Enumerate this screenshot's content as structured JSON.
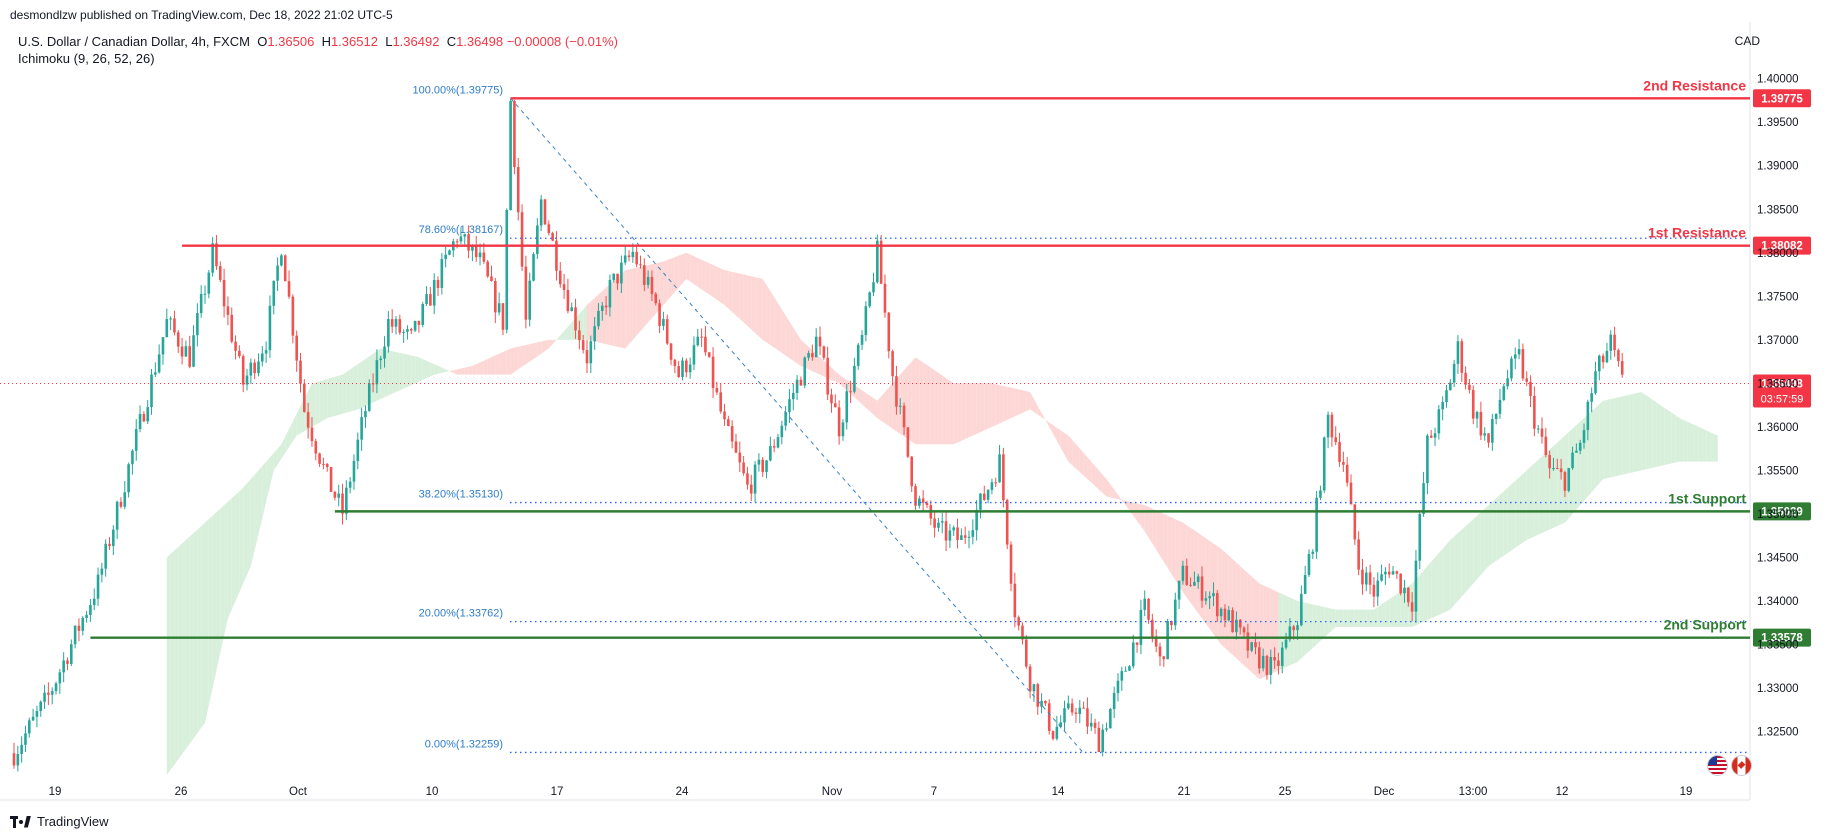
{
  "publisher_line": "desmondlzw published on TradingView.com, Dec 18, 2022 21:02 UTC-5",
  "header": {
    "symbol": "U.S. Dollar / Canadian Dollar, 4h, FXCM",
    "o_label": "O",
    "o_value": "1.36506",
    "h_label": "H",
    "h_value": "1.36512",
    "l_label": "L",
    "l_value": "1.36492",
    "c_label": "C",
    "c_value": "1.36498",
    "change": "−0.00008 (−0.01%)",
    "indicator": "Ichimoku (9, 26, 52, 26)",
    "currency": "CAD"
  },
  "footer": {
    "brand": "TradingView"
  },
  "price_tag": {
    "price": "1.36498",
    "countdown": "03:57:59"
  },
  "colors": {
    "up": "#26a69a",
    "down": "#ef5350",
    "resistance": "#f23645",
    "support": "#2e7d32",
    "fib": "#2962ff",
    "fib_text": "#2f7dc9",
    "cloud_bull": "#d8f0db",
    "cloud_bear": "#fcd7d5"
  },
  "chart_data": {
    "type": "candlestick",
    "symbol": "USDCAD",
    "timeframe": "4h",
    "ylim": [
      1.32,
      1.401
    ],
    "y_ticks": [
      "1.40000",
      "1.39500",
      "1.39000",
      "1.38500",
      "1.38000",
      "1.37500",
      "1.37000",
      "1.36500",
      "1.36000",
      "1.35500",
      "1.35000",
      "1.34500",
      "1.34000",
      "1.33500",
      "1.33000",
      "1.32500"
    ],
    "x_ticks": [
      "19",
      "26",
      "Oct",
      "10",
      "17",
      "24",
      "Nov",
      "7",
      "14",
      "21",
      "25",
      "Dec",
      "13:00",
      "12",
      "19"
    ],
    "price_path": [
      [
        0,
        1.3225
      ],
      [
        9,
        1.329
      ],
      [
        16,
        1.336
      ],
      [
        22,
        1.342
      ],
      [
        28,
        1.352
      ],
      [
        34,
        1.362
      ],
      [
        40,
        1.372
      ],
      [
        46,
        1.368
      ],
      [
        52,
        1.38
      ],
      [
        60,
        1.365
      ],
      [
        66,
        1.37
      ],
      [
        70,
        1.381
      ],
      [
        76,
        1.362
      ],
      [
        82,
        1.354
      ],
      [
        86,
        1.3502
      ],
      [
        92,
        1.362
      ],
      [
        98,
        1.372
      ],
      [
        104,
        1.37
      ],
      [
        110,
        1.376
      ],
      [
        116,
        1.382
      ],
      [
        122,
        1.379
      ],
      [
        128,
        1.372
      ],
      [
        130,
        1.3975
      ],
      [
        134,
        1.372
      ],
      [
        138,
        1.386
      ],
      [
        144,
        1.376
      ],
      [
        150,
        1.368
      ],
      [
        156,
        1.376
      ],
      [
        162,
        1.38
      ],
      [
        168,
        1.374
      ],
      [
        174,
        1.366
      ],
      [
        180,
        1.37
      ],
      [
        186,
        1.36
      ],
      [
        192,
        1.353
      ],
      [
        198,
        1.357
      ],
      [
        204,
        1.364
      ],
      [
        210,
        1.37
      ],
      [
        216,
        1.36
      ],
      [
        222,
        1.37
      ],
      [
        226,
        1.38
      ],
      [
        230,
        1.366
      ],
      [
        236,
        1.352
      ],
      [
        242,
        1.348
      ],
      [
        248,
        1.347
      ],
      [
        254,
        1.352
      ],
      [
        258,
        1.356
      ],
      [
        262,
        1.339
      ],
      [
        266,
        1.331
      ],
      [
        272,
        1.325
      ],
      [
        278,
        1.328
      ],
      [
        284,
        1.324
      ],
      [
        290,
        1.331
      ],
      [
        296,
        1.339
      ],
      [
        300,
        1.333
      ],
      [
        306,
        1.343
      ],
      [
        312,
        1.341
      ],
      [
        318,
        1.338
      ],
      [
        324,
        1.334
      ],
      [
        330,
        1.332
      ],
      [
        336,
        1.338
      ],
      [
        340,
        1.347
      ],
      [
        344,
        1.361
      ],
      [
        348,
        1.356
      ],
      [
        352,
        1.344
      ],
      [
        356,
        1.341
      ],
      [
        360,
        1.344
      ],
      [
        366,
        1.34
      ],
      [
        370,
        1.358
      ],
      [
        374,
        1.362
      ],
      [
        378,
        1.369
      ],
      [
        382,
        1.362
      ],
      [
        386,
        1.358
      ],
      [
        390,
        1.365
      ],
      [
        394,
        1.368
      ],
      [
        398,
        1.361
      ],
      [
        402,
        1.355
      ],
      [
        406,
        1.354
      ],
      [
        410,
        1.358
      ],
      [
        414,
        1.366
      ],
      [
        418,
        1.3695
      ],
      [
        421,
        1.365
      ]
    ],
    "ichimoku_cloud_top": [
      [
        40,
        1.345
      ],
      [
        60,
        1.353
      ],
      [
        70,
        1.358
      ],
      [
        78,
        1.365
      ],
      [
        86,
        1.366
      ],
      [
        96,
        1.369
      ],
      [
        106,
        1.368
      ],
      [
        116,
        1.366
      ],
      [
        122,
        1.366
      ],
      [
        130,
        1.366
      ],
      [
        140,
        1.369
      ],
      [
        150,
        1.374
      ],
      [
        160,
        1.378
      ],
      [
        170,
        1.379
      ],
      [
        176,
        1.38
      ],
      [
        186,
        1.378
      ],
      [
        196,
        1.377
      ],
      [
        206,
        1.37
      ],
      [
        216,
        1.366
      ],
      [
        226,
        1.363
      ],
      [
        236,
        1.368
      ],
      [
        246,
        1.365
      ],
      [
        256,
        1.365
      ],
      [
        266,
        1.364
      ],
      [
        276,
        1.356
      ],
      [
        286,
        1.352
      ],
      [
        296,
        1.351
      ],
      [
        306,
        1.349
      ],
      [
        316,
        1.346
      ],
      [
        326,
        1.342
      ],
      [
        336,
        1.34
      ],
      [
        346,
        1.339
      ],
      [
        356,
        1.339
      ],
      [
        366,
        1.342
      ],
      [
        376,
        1.347
      ],
      [
        386,
        1.351
      ],
      [
        396,
        1.355
      ],
      [
        406,
        1.359
      ],
      [
        416,
        1.363
      ],
      [
        426,
        1.364
      ],
      [
        436,
        1.361
      ],
      [
        446,
        1.359
      ]
    ],
    "ichimoku_cloud_bottom": [
      [
        40,
        1.32
      ],
      [
        50,
        1.326
      ],
      [
        56,
        1.338
      ],
      [
        62,
        1.344
      ],
      [
        68,
        1.355
      ],
      [
        74,
        1.359
      ],
      [
        82,
        1.361
      ],
      [
        90,
        1.362
      ],
      [
        100,
        1.364
      ],
      [
        110,
        1.366
      ],
      [
        120,
        1.367
      ],
      [
        130,
        1.369
      ],
      [
        140,
        1.37
      ],
      [
        150,
        1.37
      ],
      [
        160,
        1.369
      ],
      [
        170,
        1.374
      ],
      [
        176,
        1.377
      ],
      [
        186,
        1.374
      ],
      [
        196,
        1.37
      ],
      [
        206,
        1.367
      ],
      [
        216,
        1.365
      ],
      [
        226,
        1.361
      ],
      [
        236,
        1.358
      ],
      [
        246,
        1.358
      ],
      [
        256,
        1.36
      ],
      [
        266,
        1.362
      ],
      [
        276,
        1.359
      ],
      [
        286,
        1.354
      ],
      [
        296,
        1.348
      ],
      [
        306,
        1.341
      ],
      [
        316,
        1.335
      ],
      [
        326,
        1.331
      ],
      [
        336,
        1.333
      ],
      [
        346,
        1.337
      ],
      [
        356,
        1.337
      ],
      [
        366,
        1.337
      ],
      [
        376,
        1.339
      ],
      [
        386,
        1.344
      ],
      [
        396,
        1.347
      ],
      [
        406,
        1.349
      ],
      [
        416,
        1.354
      ],
      [
        426,
        1.355
      ],
      [
        436,
        1.356
      ],
      [
        446,
        1.356
      ]
    ],
    "levels": [
      {
        "name": "2nd Resistance",
        "price": 1.39775,
        "price_label": "1.39775",
        "type": "resistance",
        "x_start": 130
      },
      {
        "name": "1st Resistance",
        "price": 1.38082,
        "price_label": "1.38082",
        "type": "resistance",
        "x_start": 44
      },
      {
        "name": "1st Support",
        "price": 1.35029,
        "price_label": "1.35029",
        "type": "support",
        "x_start": 84
      },
      {
        "name": "2nd Support",
        "price": 1.33578,
        "price_label": "1.33578",
        "type": "support",
        "x_start": 20
      }
    ],
    "fib_levels": [
      {
        "label": "100.00%(1.39775)",
        "price": 1.39775,
        "dotted": false
      },
      {
        "label": "78.60%(1.38167)",
        "price": 1.38167,
        "dotted": true
      },
      {
        "label": "38.20%(1.35130)",
        "price": 1.3513,
        "dotted": true
      },
      {
        "label": "20.00%(1.33762)",
        "price": 1.33762,
        "dotted": true
      },
      {
        "label": "0.00%(1.32259)",
        "price": 1.32259,
        "dotted": true
      }
    ],
    "fib_trend": {
      "from": [
        130,
        1.39775
      ],
      "to": [
        272,
        1.32259
      ]
    },
    "last_price": 1.36498
  }
}
